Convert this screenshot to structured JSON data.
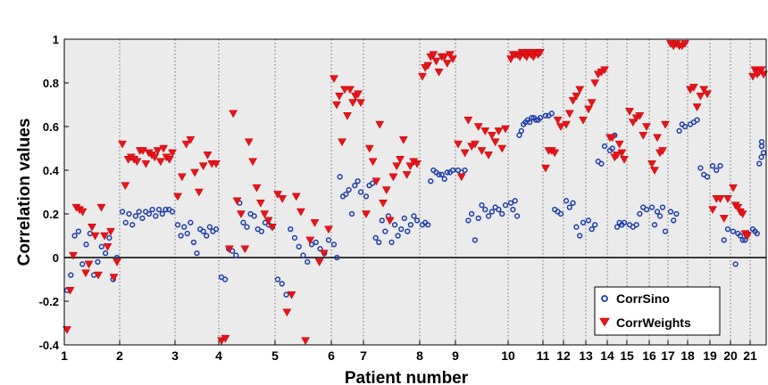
{
  "chart_data": {
    "type": "scatter",
    "xlabel": "Patient number",
    "ylabel": "Correlation values",
    "xlim": [
      1,
      22.75
    ],
    "ylim": [
      -0.4,
      1
    ],
    "x_ticks": [
      "1",
      "2",
      "3",
      "4",
      "5",
      "6",
      "7",
      "8",
      "9",
      "10",
      "11",
      "12",
      "13",
      "14",
      "15",
      "16",
      "17",
      "18",
      "19",
      "20",
      "21"
    ],
    "y_ticks": [
      "-0.4",
      "-0.2",
      "0",
      "0.2",
      "0.4",
      "0.6",
      "0.8",
      "1"
    ],
    "grid": "vertical dotted lines at each patient",
    "zero_line": true,
    "legend_position": "bottom-right",
    "colors": {
      "CorrSino": "#1f3ea8",
      "CorrWeights": "#e8141c",
      "background": "#ebebeb"
    },
    "patient_ranges": [
      {
        "patient": 1,
        "start": 1,
        "end": 2
      },
      {
        "patient": 2,
        "start": 2,
        "end": 3
      },
      {
        "patient": 3,
        "start": 3,
        "end": 4
      },
      {
        "patient": 4,
        "start": 4,
        "end": 5
      },
      {
        "patient": 5,
        "start": 5,
        "end": 6
      },
      {
        "patient": 6,
        "start": 6,
        "end": 6.55
      },
      {
        "patient": 7,
        "start": 6.55,
        "end": 8
      },
      {
        "patient": 8,
        "start": 8,
        "end": 9
      },
      {
        "patient": 9,
        "start": 9,
        "end": 10
      },
      {
        "patient": 10,
        "start": 10,
        "end": 11
      },
      {
        "patient": 11,
        "start": 11,
        "end": 11.4
      },
      {
        "patient": 12,
        "start": 11.4,
        "end": 11.9
      },
      {
        "patient": 13,
        "start": 11.9,
        "end": 12.35
      },
      {
        "patient": 14,
        "start": 12.35,
        "end": 12.85
      },
      {
        "patient": 15,
        "start": 12.85,
        "end": 13.3
      },
      {
        "patient": 16,
        "start": 13.3,
        "end": 13.8
      },
      {
        "patient": 17,
        "start": 13.8,
        "end": 14.5
      },
      {
        "patient": 18,
        "start": 14.5,
        "end": 15.0
      },
      {
        "patient": 19,
        "start": 15.0,
        "end": 15.4
      },
      {
        "patient": 20,
        "start": 15.4,
        "end": 15.9
      },
      {
        "patient": 21,
        "start": 15.9,
        "end": 16.25
      }
    ],
    "series": [
      {
        "name": "CorrSino",
        "marker": "circle",
        "values": [
          -0.15,
          -0.08,
          0.1,
          0.12,
          -0.03,
          0.06,
          0.11,
          -0.08,
          -0.02,
          0.05,
          0.02,
          0.09,
          -0.1,
          0.0,
          0.21,
          0.16,
          0.2,
          0.15,
          0.19,
          0.21,
          0.18,
          0.21,
          0.2,
          0.22,
          0.19,
          0.22,
          0.2,
          0.22,
          0.22,
          0.21,
          0.15,
          0.1,
          0.14,
          0.11,
          0.16,
          0.07,
          0.02,
          0.13,
          0.12,
          0.1,
          0.14,
          0.12,
          0.13,
          -0.09,
          -0.1,
          0.04,
          0.03,
          0.01,
          0.25,
          0.16,
          0.14,
          0.2,
          0.19,
          0.13,
          0.12,
          0.16,
          0.15,
          0.14,
          -0.1,
          -0.12,
          -0.17,
          0.13,
          0.09,
          0.05,
          0.01,
          -0.02,
          0.06,
          0.07,
          0.04,
          0.02,
          0.08,
          0.06,
          0.0,
          0.37,
          0.28,
          0.29,
          0.31,
          0.2,
          0.33,
          0.35,
          0.3,
          0.28,
          0.33,
          0.34,
          0.09,
          0.07,
          0.17,
          0.12,
          0.19,
          0.07,
          0.15,
          0.1,
          0.13,
          0.18,
          0.12,
          0.15,
          0.19,
          0.17,
          0.15,
          0.16,
          0.15,
          0.35,
          0.4,
          0.39,
          0.38,
          0.38,
          0.36,
          0.39,
          0.39,
          0.4,
          0.4,
          0.39,
          0.4,
          0.17,
          0.2,
          0.08,
          0.18,
          0.24,
          0.22,
          0.19,
          0.21,
          0.23,
          0.22,
          0.2,
          0.24,
          0.25,
          0.22,
          0.26,
          0.19,
          0.56,
          0.58,
          0.61,
          0.62,
          0.63,
          0.62,
          0.64,
          0.64,
          0.63,
          0.63,
          0.64,
          0.65,
          0.65,
          0.66,
          0.22,
          0.21,
          0.2,
          0.26,
          0.23,
          0.25,
          0.14,
          0.1,
          0.16,
          0.17,
          0.13,
          0.15,
          0.44,
          0.43,
          0.51,
          0.49,
          0.5,
          0.56,
          0.14,
          0.16,
          0.15,
          0.16,
          0.15,
          0.14,
          0.15,
          0.2,
          0.23,
          0.22,
          0.23,
          0.15,
          0.21,
          0.19,
          0.23,
          0.12,
          0.21,
          0.17,
          0.2,
          0.58,
          0.61,
          0.6,
          0.61,
          0.62,
          0.63,
          0.41,
          0.38,
          0.37,
          0.42,
          0.4,
          0.42,
          0.08,
          0.13,
          0.12,
          -0.03,
          0.11,
          0.1,
          0.08,
          0.08,
          0.11,
          0.13,
          0.12,
          0.11,
          0.43,
          0.46,
          0.48,
          0.51,
          0.51,
          0.53
        ]
      },
      {
        "name": "CorrWeights",
        "marker": "triangle-down",
        "values": [
          -0.33,
          -0.15,
          0.01,
          0.23,
          0.22,
          0.21,
          -0.07,
          -0.03,
          0.14,
          0.1,
          -0.08,
          0.23,
          0.1,
          0.05,
          0.12,
          -0.09,
          -0.02,
          0.52,
          0.33,
          0.45,
          0.46,
          0.45,
          0.44,
          0.49,
          0.49,
          0.43,
          0.48,
          0.47,
          0.46,
          0.49,
          0.44,
          0.5,
          0.46,
          0.45,
          0.48,
          0.28,
          0.37,
          0.52,
          0.54,
          0.39,
          0.3,
          0.42,
          0.47,
          0.43,
          0.43,
          -0.38,
          -0.37,
          0.04,
          0.66,
          0.26,
          0.2,
          0.04,
          0.53,
          0.44,
          0.32,
          0.25,
          0.2,
          0.17,
          0.14,
          0.29,
          0.27,
          -0.25,
          -0.17,
          0.28,
          0.21,
          -0.38,
          0.08,
          0.16,
          -0.02,
          0.02,
          0.13,
          0.82,
          0.7,
          0.74,
          0.53,
          0.77,
          0.65,
          0.77,
          0.71,
          0.74,
          0.75,
          0.71,
          0.2,
          0.5,
          0.44,
          0.35,
          0.61,
          0.25,
          0.31,
          0.17,
          0.37,
          0.42,
          0.45,
          0.54,
          0.38,
          0.42,
          0.44,
          0.43,
          0.83,
          0.87,
          0.88,
          0.92,
          0.93,
          0.9,
          0.85,
          0.92,
          0.92,
          0.89,
          0.93,
          0.91,
          0.52,
          0.37,
          0.48,
          0.63,
          0.51,
          0.52,
          0.6,
          0.49,
          0.58,
          0.47,
          0.56,
          0.53,
          0.58,
          0.5,
          0.59,
          0.91,
          0.93,
          0.93,
          0.93,
          0.92,
          0.94,
          0.93,
          0.92,
          0.94,
          0.93,
          0.92,
          0.94,
          0.93,
          0.94,
          0.41,
          0.49,
          0.49,
          0.48,
          0.63,
          0.6,
          0.61,
          0.66,
          0.72,
          0.74,
          0.77,
          0.63,
          0.68,
          0.71,
          0.8,
          0.84,
          0.85,
          0.86,
          0.55,
          0.55,
          0.46,
          0.47,
          0.52,
          0.48,
          0.45,
          0.67,
          0.62,
          0.64,
          0.65,
          0.56,
          0.6,
          0.43,
          0.4,
          0.55,
          0.48,
          0.49,
          0.61,
          0.98,
          0.97,
          0.98,
          0.97,
          0.97,
          0.98,
          0.77,
          0.78,
          0.69,
          0.74,
          0.77,
          0.75,
          0.22,
          0.27,
          0.27,
          0.18,
          0.27,
          0.32,
          0.24,
          0.23,
          0.21,
          0.2,
          0.11,
          0.1,
          0.83,
          0.86,
          0.84,
          0.85,
          0.86,
          0.84
        ]
      }
    ]
  }
}
